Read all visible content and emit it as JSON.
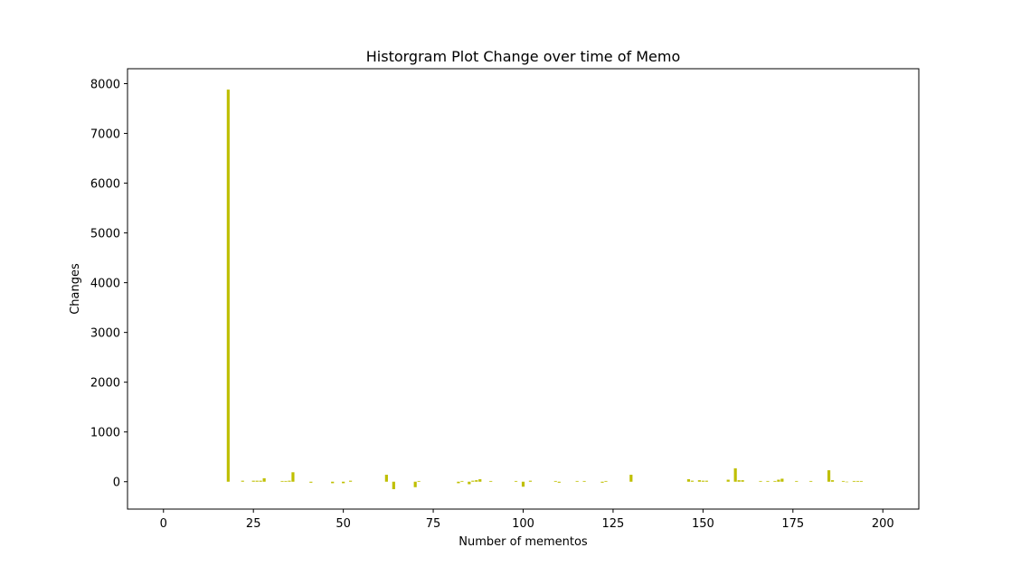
{
  "chart_data": {
    "type": "bar",
    "title": "Historgram Plot Change over time of Memo",
    "xlabel": "Number of mementos",
    "ylabel": "Changes",
    "xlim": [
      -10,
      210
    ],
    "ylim": [
      -550,
      8300
    ],
    "xticks": [
      0,
      25,
      50,
      75,
      100,
      125,
      150,
      175,
      200
    ],
    "yticks": [
      0,
      1000,
      2000,
      3000,
      4000,
      5000,
      6000,
      7000,
      8000
    ],
    "bar_color": "#bfbf00",
    "grid": false,
    "legend": "none",
    "x": [
      18,
      22,
      25,
      26,
      27,
      28,
      33,
      34,
      35,
      36,
      41,
      47,
      50,
      52,
      62,
      64,
      70,
      71,
      82,
      83,
      85,
      86,
      87,
      88,
      91,
      98,
      100,
      102,
      109,
      110,
      115,
      117,
      122,
      123,
      130,
      146,
      147,
      149,
      150,
      151,
      157,
      159,
      160,
      161,
      166,
      168,
      170,
      171,
      172,
      176,
      180,
      185,
      186,
      189,
      190,
      192,
      193,
      194
    ],
    "values": [
      7880,
      20,
      20,
      20,
      20,
      70,
      15,
      15,
      20,
      190,
      -20,
      -30,
      -30,
      20,
      140,
      -150,
      -110,
      15,
      -30,
      15,
      -50,
      20,
      30,
      50,
      15,
      15,
      -100,
      20,
      15,
      -20,
      15,
      15,
      -20,
      15,
      140,
      50,
      20,
      30,
      20,
      20,
      40,
      270,
      30,
      30,
      15,
      15,
      15,
      40,
      60,
      15,
      15,
      230,
      30,
      15,
      -10,
      15,
      15,
      15
    ]
  }
}
